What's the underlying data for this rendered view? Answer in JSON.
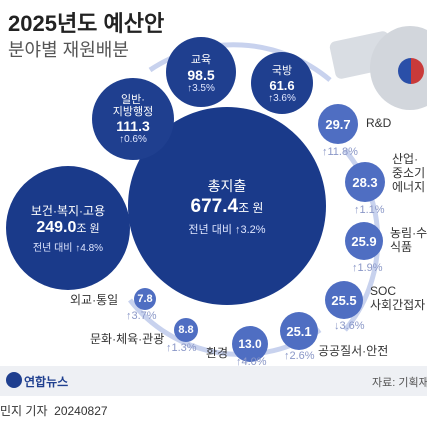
{
  "header": {
    "title": "2025년도 예산안",
    "subtitle": "분야별 재원배분"
  },
  "total": {
    "label": "총지출",
    "value": "677.4",
    "unit": "조 원",
    "change": "전년 대비 ↑3.2%"
  },
  "welfare": {
    "label": "보건·복지·고용",
    "value": "249.0",
    "unit": "조 원",
    "change": "전년 대비 ↑4.8%"
  },
  "general": {
    "label1": "일반·",
    "label2": "지방행정",
    "value": "111.3",
    "change": "↑0.6%"
  },
  "education": {
    "label": "교육",
    "value": "98.5",
    "change": "↑3.5%"
  },
  "defense": {
    "label": "국방",
    "value": "61.6",
    "change": "↑3.6%"
  },
  "rnd": {
    "label": "R&D",
    "value": "29.7",
    "change": "↑11.8%"
  },
  "industry": {
    "label1": "산업·",
    "label2": "중소기",
    "label3": "에너지",
    "value": "28.3",
    "change": "↑1.1%"
  },
  "agri": {
    "label1": "농림·수",
    "label2": "식품",
    "value": "25.9",
    "change": "↑1.9%"
  },
  "soc": {
    "label1": "SOC",
    "label2": "사회간접자",
    "value": "25.5",
    "change": "↓3.6%"
  },
  "public": {
    "label": "공공질서·안전",
    "value": "25.1",
    "change": "↑2.6%"
  },
  "environment": {
    "label": "환경",
    "value": "13.0",
    "change": "↑4.0%"
  },
  "culture": {
    "label": "문화·체육·관광",
    "value": "8.8",
    "change": "↑1.3%"
  },
  "diplomacy": {
    "label": "외교·통일",
    "value": "7.8",
    "change": "↑3.7%"
  },
  "footer": {
    "logo": "연합뉴스",
    "source": "자료: 기획재",
    "credit": "민지 기자  20240827"
  },
  "colors": {
    "dark": "#1f3f8f",
    "light": "#4f6ec2",
    "arc": "#c8d2ee"
  }
}
